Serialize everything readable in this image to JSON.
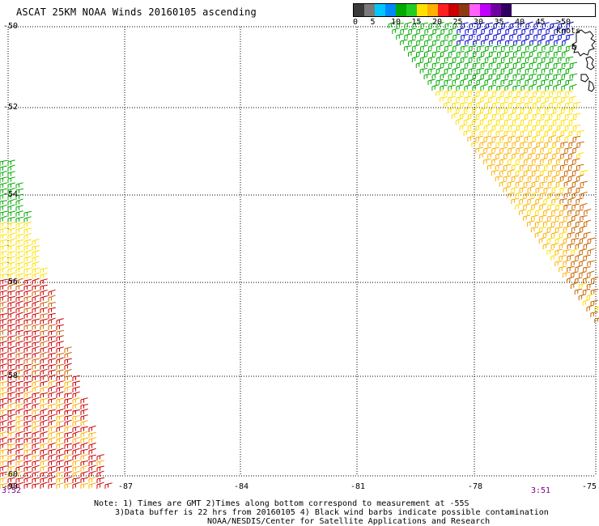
{
  "title": "ASCAT 25KM NOAA Winds 20160105 ascending",
  "legend": {
    "labels": [
      "0",
      "5",
      "10",
      "15",
      "20",
      "25",
      "30",
      "35",
      "40",
      "45",
      ">50 knots"
    ],
    "colors": [
      "#3a3a3a",
      "#7a7a7a",
      "#00c8ff",
      "#0088ff",
      "#00aa00",
      "#22cc22",
      "#ffe000",
      "#ffb000",
      "#ff2020",
      "#cc0000",
      "#8b3b10",
      "#ff60ff",
      "#c000ff",
      "#7000a0",
      "#300060"
    ]
  },
  "lat_labels": [
    "-50",
    "-52",
    "-54",
    "-56",
    "-58",
    "-60"
  ],
  "lon_labels": [
    "-87",
    "-84",
    "-81",
    "-78",
    "-75"
  ],
  "corner_label": "-90",
  "times": [
    "3:52",
    "3:51"
  ],
  "notes": [
    "Note: 1) Times are GMT 2)Times along bottom correspond to measurement at -55S",
    "3)Data buffer is 22 hrs from 20160105 4) Black wind barbs indicate possible contamination",
    "NOAA/NESDIS/Center for Satellite Applications and Research"
  ],
  "map": {
    "lon_range": [
      -90,
      -75
    ],
    "lat_range": [
      -60,
      -50
    ],
    "colors": {
      "blue": "#0000cc",
      "green": "#00aa00",
      "yellow": "#ffe000",
      "orange": "#ffb000",
      "brown": "#c86400",
      "red": "#cc0000",
      "coast": "#000000"
    }
  }
}
